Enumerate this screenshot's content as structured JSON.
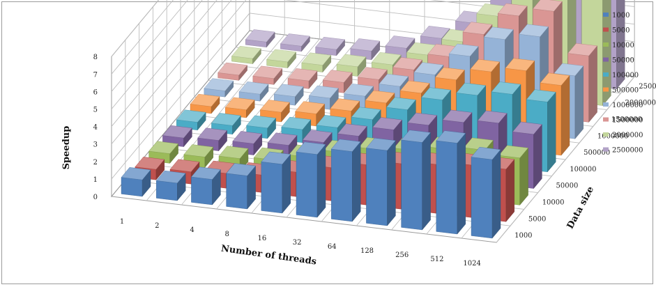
{
  "chart_data": {
    "type": "bar",
    "subtype": "3d-clustered-column",
    "title": "",
    "xlabel": "Number of threads",
    "ylabel": "Speedup",
    "zlabel": "Data size",
    "categories": [
      "1",
      "2",
      "4",
      "8",
      "16",
      "32",
      "64",
      "128",
      "256",
      "512",
      "1024"
    ],
    "ylim": [
      0,
      8
    ],
    "yticks": [
      "0",
      "1",
      "2",
      "3",
      "4",
      "5",
      "6",
      "7",
      "8"
    ],
    "grid": true,
    "legend_position": "right",
    "series": [
      {
        "name": "1000",
        "color": "#4f81bd",
        "values": [
          0.95,
          1.0,
          1.45,
          1.9,
          2.8,
          3.6,
          4.0,
          4.3,
          5.0,
          5.2,
          4.5
        ]
      },
      {
        "name": "5000",
        "color": "#c0504d",
        "values": [
          0.6,
          0.7,
          0.85,
          1.0,
          1.4,
          1.9,
          2.3,
          2.6,
          2.8,
          3.0,
          3.0
        ]
      },
      {
        "name": "10000",
        "color": "#9bbb59",
        "values": [
          0.55,
          0.6,
          0.75,
          0.9,
          1.3,
          1.8,
          2.2,
          2.4,
          2.7,
          2.9,
          2.7
        ]
      },
      {
        "name": "50000",
        "color": "#8064a2",
        "values": [
          0.5,
          0.6,
          0.65,
          0.8,
          1.2,
          1.8,
          2.4,
          2.9,
          3.3,
          3.5,
          3.1
        ]
      },
      {
        "name": "100000",
        "color": "#4bacc6",
        "values": [
          0.45,
          0.5,
          0.6,
          0.75,
          1.1,
          1.8,
          2.6,
          3.4,
          3.9,
          4.2,
          4.0
        ]
      },
      {
        "name": "500000",
        "color": "#f79646",
        "values": [
          0.4,
          0.45,
          0.55,
          0.7,
          1.1,
          1.8,
          2.6,
          3.6,
          4.3,
          4.6,
          4.0
        ]
      },
      {
        "name": "1000000",
        "color": "#95b3d7",
        "values": [
          0.35,
          0.4,
          0.5,
          0.65,
          1.0,
          1.8,
          2.7,
          4.0,
          5.2,
          5.6,
          3.6
        ]
      },
      {
        "name": "1500000",
        "color": "#da9694",
        "values": [
          0.3,
          0.35,
          0.45,
          0.6,
          1.0,
          1.8,
          2.8,
          4.3,
          5.6,
          6.1,
          3.8
        ]
      },
      {
        "name": "2000000",
        "color": "#c3d69b",
        "values": [
          0.3,
          0.35,
          0.4,
          0.55,
          0.9,
          1.7,
          2.7,
          4.4,
          6.1,
          6.3,
          6.1
        ]
      },
      {
        "name": "2500000",
        "color": "#b2a2c7",
        "values": [
          0.3,
          0.3,
          0.35,
          0.5,
          0.9,
          1.7,
          2.8,
          4.9,
          7.2,
          7.4,
          5.7
        ]
      }
    ]
  }
}
